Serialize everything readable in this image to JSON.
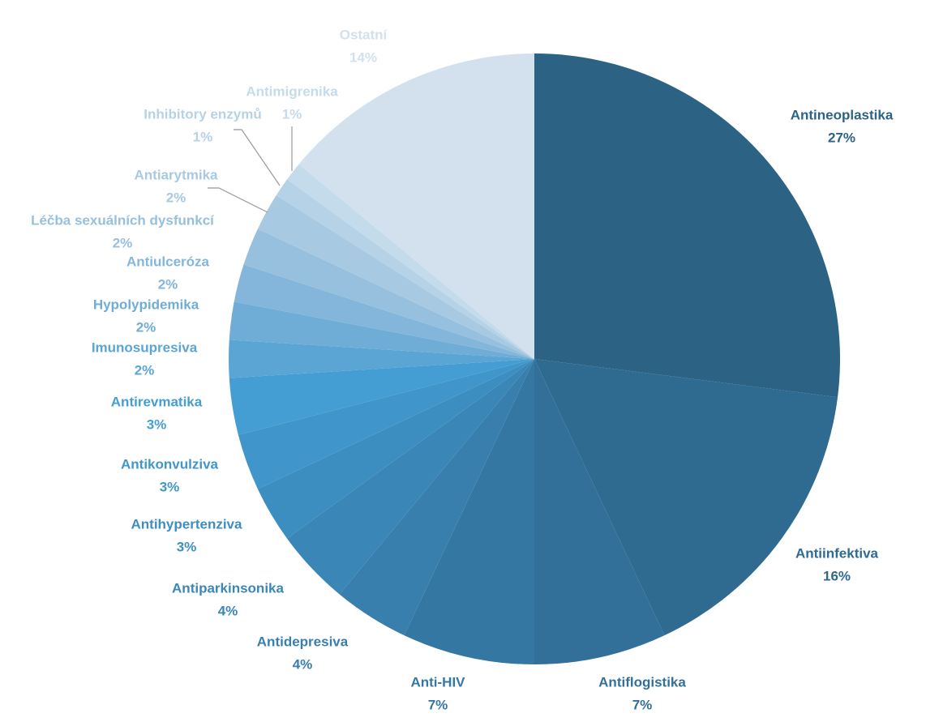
{
  "chart_data": {
    "type": "pie",
    "categories": [
      "Antineoplastika",
      "Antiinfektiva",
      "Antiflogistika",
      "Anti-HIV",
      "Antidepresiva",
      "Antiparkinsonika",
      "Antihypertenziva",
      "Antikonvulziva",
      "Antirevmatika",
      "Imunosupresiva",
      "Hypolypidemika",
      "Antiulceróza",
      "Léčba sexuálních dysfunkcí",
      "Antiarytmika",
      "Inhibitory enzymů",
      "Antimigrenika",
      "Ostatní"
    ],
    "values": [
      27,
      16,
      7,
      7,
      4,
      4,
      3,
      3,
      3,
      2,
      2,
      2,
      2,
      2,
      1,
      1,
      14
    ],
    "value_labels": [
      "27%",
      "16%",
      "7%",
      "7%",
      "4%",
      "4%",
      "3%",
      "3%",
      "3%",
      "2%",
      "2%",
      "2%",
      "2%",
      "2%",
      "1%",
      "1%",
      "14%"
    ],
    "colors": [
      "#2c6284",
      "#2f6a90",
      "#32709a",
      "#3577a3",
      "#387fad",
      "#3a86b7",
      "#3d8ec0",
      "#4096ca",
      "#449ed3",
      "#5aa5d4",
      "#6fadd6",
      "#83b6da",
      "#96c0dd",
      "#a7c9e2",
      "#b6d2e6",
      "#c4dbeb",
      "#d3e0ee"
    ]
  }
}
